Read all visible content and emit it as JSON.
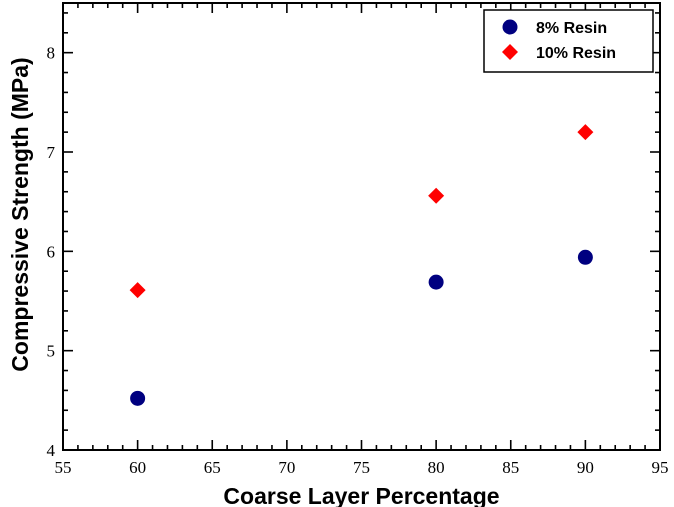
{
  "chart_data": {
    "type": "scatter",
    "title": "",
    "xlabel": "Coarse Layer Percentage",
    "ylabel": "Compressive Strength (MPa)",
    "xlim": [
      55,
      95
    ],
    "ylim": [
      4,
      8.5
    ],
    "xticks": [
      "55",
      "60",
      "65",
      "70",
      "75",
      "80",
      "85",
      "90",
      "95"
    ],
    "yticks": [
      "4",
      "5",
      "6",
      "7",
      "8"
    ],
    "grid": false,
    "legend_position": "top-right",
    "series": [
      {
        "name": "8% Resin",
        "marker": "circle",
        "color": "#000080",
        "x": [
          60,
          80,
          90
        ],
        "y": [
          4.52,
          5.69,
          5.94
        ]
      },
      {
        "name": "10% Resin",
        "marker": "diamond",
        "color": "#ff0000",
        "x": [
          60,
          80,
          90
        ],
        "y": [
          5.61,
          6.56,
          7.2
        ]
      }
    ]
  }
}
